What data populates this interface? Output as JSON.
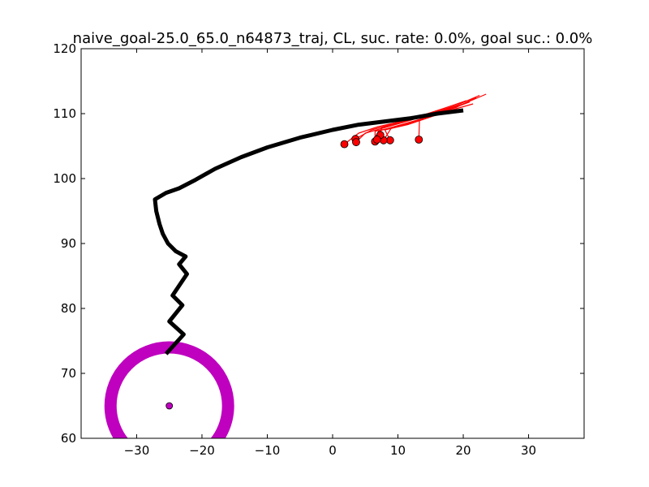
{
  "chart_data": {
    "type": "line",
    "title": "naive_goal-25.0_65.0_n64873_traj, CL, suc. rate: 0.0%, goal suc.: 0.0%",
    "xlim": [
      -38.5,
      38.5
    ],
    "ylim": [
      60,
      120
    ],
    "xticks": [
      -30,
      -20,
      -10,
      0,
      10,
      20,
      30
    ],
    "yticks": [
      60,
      70,
      80,
      90,
      100,
      110,
      120
    ],
    "xtick_labels": [
      "−30",
      "−20",
      "−10",
      "0",
      "10",
      "20",
      "30"
    ],
    "ytick_labels": [
      "60",
      "70",
      "80",
      "90",
      "100",
      "110",
      "120"
    ],
    "grid": false,
    "colors": {
      "main_trajectory": "#000000",
      "rollouts": "#ff0000",
      "endpoints_fill": "#ff0000",
      "goal": "#bf00bf"
    },
    "goal": {
      "x": -25.0,
      "y": 65.0,
      "ring_radius": 9
    },
    "main_trajectory": {
      "x": [
        20.0,
        16.0,
        12.0,
        8.0,
        4.0,
        0.0,
        -5.0,
        -10.0,
        -14.0,
        -18.0,
        -21.0,
        -23.5,
        -25.5,
        -27.2,
        -27.0,
        -26.5,
        -26.0,
        -25.2,
        -24.0,
        -22.5,
        -23.5,
        -22.3,
        -24.5,
        -23.0,
        -25.0,
        -22.8,
        -25.5
      ],
      "y": [
        110.5,
        110.0,
        109.3,
        108.8,
        108.3,
        107.5,
        106.3,
        104.8,
        103.3,
        101.5,
        99.8,
        98.5,
        97.8,
        96.8,
        95.0,
        93.0,
        91.5,
        90.0,
        88.8,
        88.0,
        86.8,
        85.3,
        82.0,
        80.5,
        78.0,
        76.0,
        73.0
      ]
    },
    "rollouts": [
      {
        "x": [
          17.5,
          15.0,
          12.0,
          9.0,
          6.5,
          6.5
        ],
        "y": [
          110.5,
          109.5,
          108.5,
          107.8,
          107.3,
          105.7
        ]
      },
      {
        "x": [
          19.0,
          16.0,
          13.0,
          10.0,
          7.5,
          7.2
        ],
        "y": [
          111.0,
          110.0,
          109.3,
          108.5,
          107.8,
          106.5
        ]
      },
      {
        "x": [
          21.5,
          18.0,
          15.0,
          11.5,
          8.0,
          8.8
        ],
        "y": [
          111.5,
          110.5,
          109.5,
          108.3,
          107.5,
          105.9
        ]
      },
      {
        "x": [
          22.0,
          19.0,
          15.5,
          13.3,
          13.2
        ],
        "y": [
          112.5,
          111.0,
          110.0,
          109.0,
          106.0
        ]
      },
      {
        "x": [
          23.5,
          20.0,
          16.5,
          12.5,
          9.0,
          7.8
        ],
        "y": [
          113.0,
          111.5,
          110.2,
          108.8,
          107.8,
          105.9
        ]
      },
      {
        "x": [
          20.5,
          17.0,
          13.0,
          9.5,
          6.0,
          3.5
        ],
        "y": [
          112.0,
          110.8,
          109.5,
          108.5,
          107.5,
          106.1
        ]
      },
      {
        "x": [
          19.5,
          16.0,
          12.0,
          8.5,
          5.0,
          3.6
        ],
        "y": [
          111.3,
          110.3,
          109.0,
          108.0,
          107.0,
          105.6
        ]
      },
      {
        "x": [
          18.0,
          14.5,
          10.5,
          7.0,
          4.0,
          1.8
        ],
        "y": [
          110.8,
          109.8,
          108.8,
          108.0,
          107.0,
          105.3
        ]
      },
      {
        "x": [
          22.5,
          19.0,
          15.0,
          11.0,
          7.5,
          7.3
        ],
        "y": [
          112.8,
          111.3,
          110.0,
          108.8,
          107.8,
          106.7
        ]
      },
      {
        "x": [
          21.0,
          17.5,
          14.0,
          10.5,
          7.0,
          6.8
        ],
        "y": [
          111.8,
          110.5,
          109.3,
          108.3,
          107.3,
          106.0
        ]
      }
    ]
  }
}
